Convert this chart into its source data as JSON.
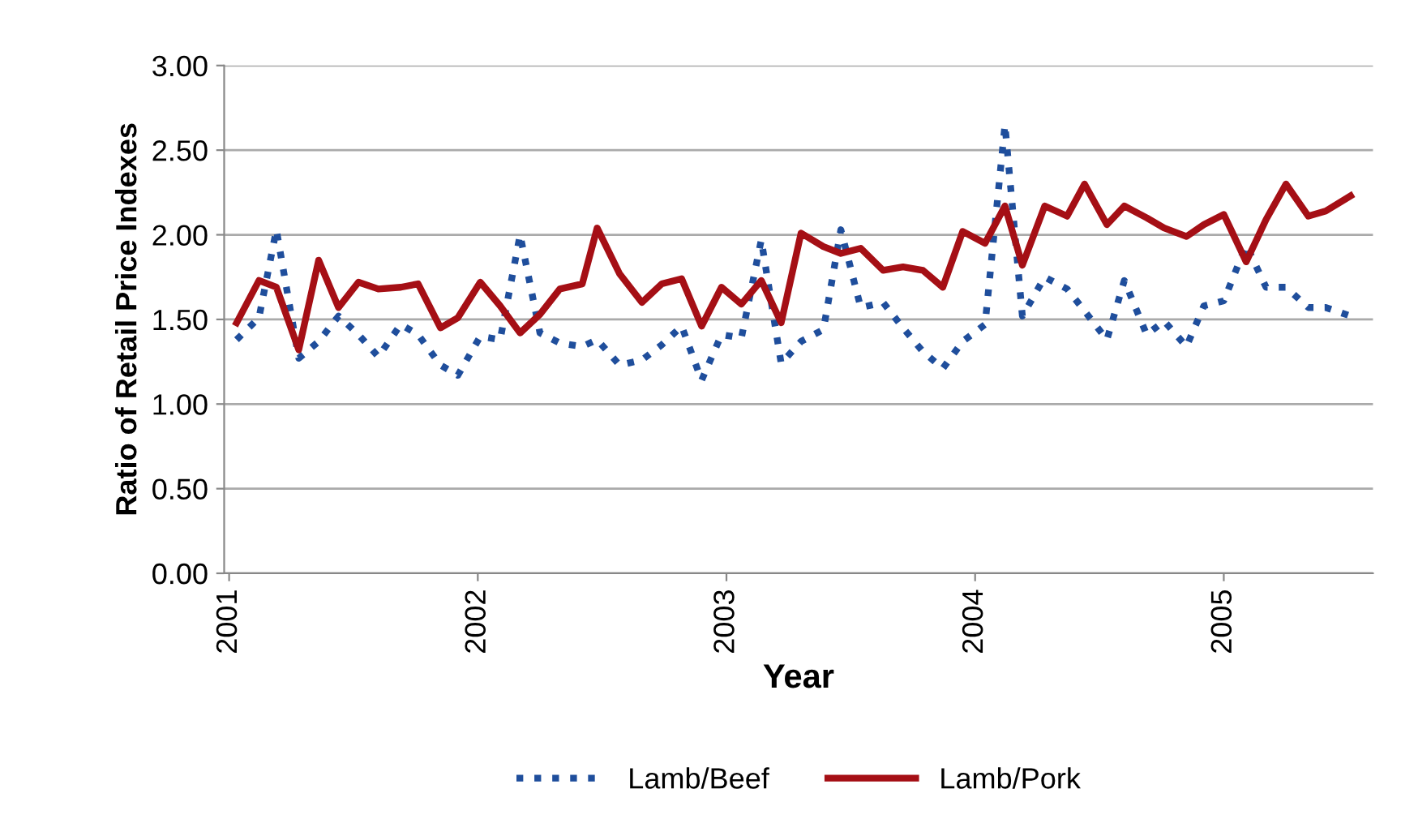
{
  "chart_data": {
    "type": "line",
    "xlabel": "Year",
    "ylabel": "Ratio of Retail Price Indexes",
    "x": [
      2001.03,
      2001.12,
      2001.19,
      2001.28,
      2001.36,
      2001.44,
      2001.52,
      2001.6,
      2001.69,
      2001.76,
      2001.85,
      2001.92,
      2002.01,
      2002.09,
      2002.17,
      2002.25,
      2002.33,
      2002.42,
      2002.48,
      2002.57,
      2002.66,
      2002.74,
      2002.82,
      2002.9,
      2002.98,
      2003.06,
      2003.14,
      2003.22,
      2003.3,
      2003.39,
      2003.46,
      2003.54,
      2003.63,
      2003.71,
      2003.79,
      2003.87,
      2003.95,
      2004.04,
      2004.12,
      2004.19,
      2004.28,
      2004.37,
      2004.44,
      2004.53,
      2004.6,
      2004.69,
      2004.76,
      2004.85,
      2004.92,
      2005.0,
      2005.09,
      2005.17,
      2005.25,
      2005.34,
      2005.41,
      2005.51
    ],
    "series": [
      {
        "name": "Lamb/Beef",
        "color": "#1f4e9c",
        "line_style": "dotted",
        "values": [
          1.38,
          1.51,
          2.03,
          1.27,
          1.37,
          1.52,
          1.41,
          1.28,
          1.47,
          1.41,
          1.23,
          1.17,
          1.4,
          1.38,
          2.0,
          1.42,
          1.36,
          1.34,
          1.38,
          1.23,
          1.26,
          1.35,
          1.46,
          1.14,
          1.41,
          1.39,
          1.97,
          1.24,
          1.37,
          1.44,
          2.03,
          1.57,
          1.6,
          1.45,
          1.31,
          1.21,
          1.37,
          1.47,
          2.65,
          1.52,
          1.75,
          1.68,
          1.55,
          1.38,
          1.73,
          1.41,
          1.49,
          1.34,
          1.58,
          1.61,
          1.94,
          1.69,
          1.69,
          1.57,
          1.57,
          1.52
        ]
      },
      {
        "name": "Lamb/Pork",
        "color": "#a50f15",
        "line_style": "solid",
        "values": [
          1.48,
          1.73,
          1.69,
          1.32,
          1.85,
          1.57,
          1.72,
          1.68,
          1.69,
          1.71,
          1.45,
          1.51,
          1.72,
          1.58,
          1.42,
          1.53,
          1.68,
          1.71,
          2.04,
          1.77,
          1.6,
          1.71,
          1.74,
          1.46,
          1.69,
          1.59,
          1.73,
          1.48,
          2.01,
          1.93,
          1.89,
          1.92,
          1.79,
          1.81,
          1.79,
          1.69,
          2.02,
          1.95,
          2.17,
          1.82,
          2.17,
          2.11,
          2.3,
          2.06,
          2.17,
          2.1,
          2.04,
          1.99,
          2.06,
          2.12,
          1.84,
          2.09,
          2.3,
          2.11,
          2.14,
          2.23
        ]
      }
    ],
    "xlim": [
      2000.98,
      2005.6
    ],
    "xticks": [
      2001,
      2002,
      2003,
      2004,
      2005
    ],
    "ylim": [
      0,
      3
    ],
    "yticks": [
      {
        "value": 0,
        "label": "0.00"
      },
      {
        "value": 0.5,
        "label": "0.50"
      },
      {
        "value": 1,
        "label": "1.00"
      },
      {
        "value": 1.5,
        "label": "1.50"
      },
      {
        "value": 2,
        "label": "2.00"
      },
      {
        "value": 2.5,
        "label": "2.50"
      },
      {
        "value": 3,
        "label": "3.00"
      }
    ],
    "grid": "y",
    "legend": "bottom"
  }
}
